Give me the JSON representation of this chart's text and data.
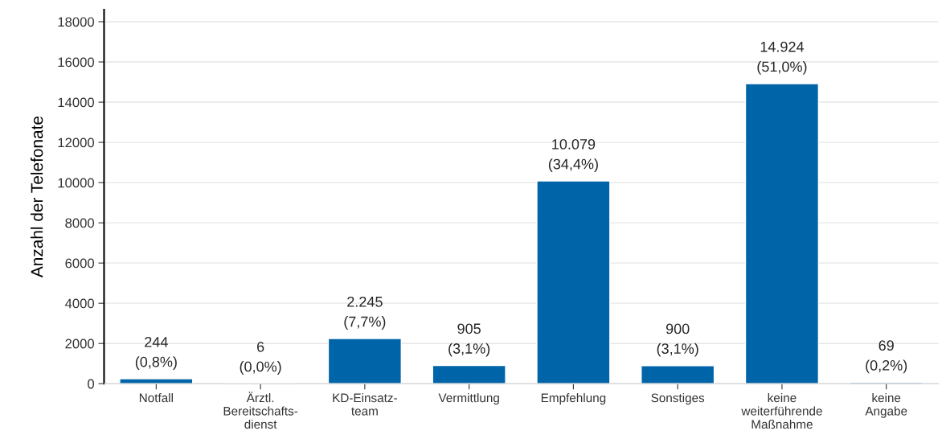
{
  "chart_data": {
    "type": "bar",
    "ylabel": "Anzahl der Telefonate",
    "categories": [
      "Notfall",
      "Ärztl.\nBereitschafts-\ndienst",
      "KD-Einsatz-\nteam",
      "Vermittlung",
      "Empfehlung",
      "Sonstiges",
      "keine\nweiterführende\nMaßnahme",
      "keine\nAngabe"
    ],
    "values": [
      244,
      6,
      2245,
      905,
      10079,
      900,
      14924,
      69
    ],
    "value_labels": [
      "244\n(0,8%)",
      "6\n(0,0%)",
      "2.245\n(7,7%)",
      "905\n(3,1%)",
      "10.079\n(34,4%)",
      "900\n(3,1%)",
      "14.924\n(51,0%)",
      "69\n(0,2%)"
    ],
    "color": "#0064a8",
    "ylim": [
      0,
      18600
    ],
    "yticks": [
      0,
      2000,
      4000,
      6000,
      8000,
      10000,
      12000,
      14000,
      16000,
      18000
    ],
    "grid": "y"
  }
}
